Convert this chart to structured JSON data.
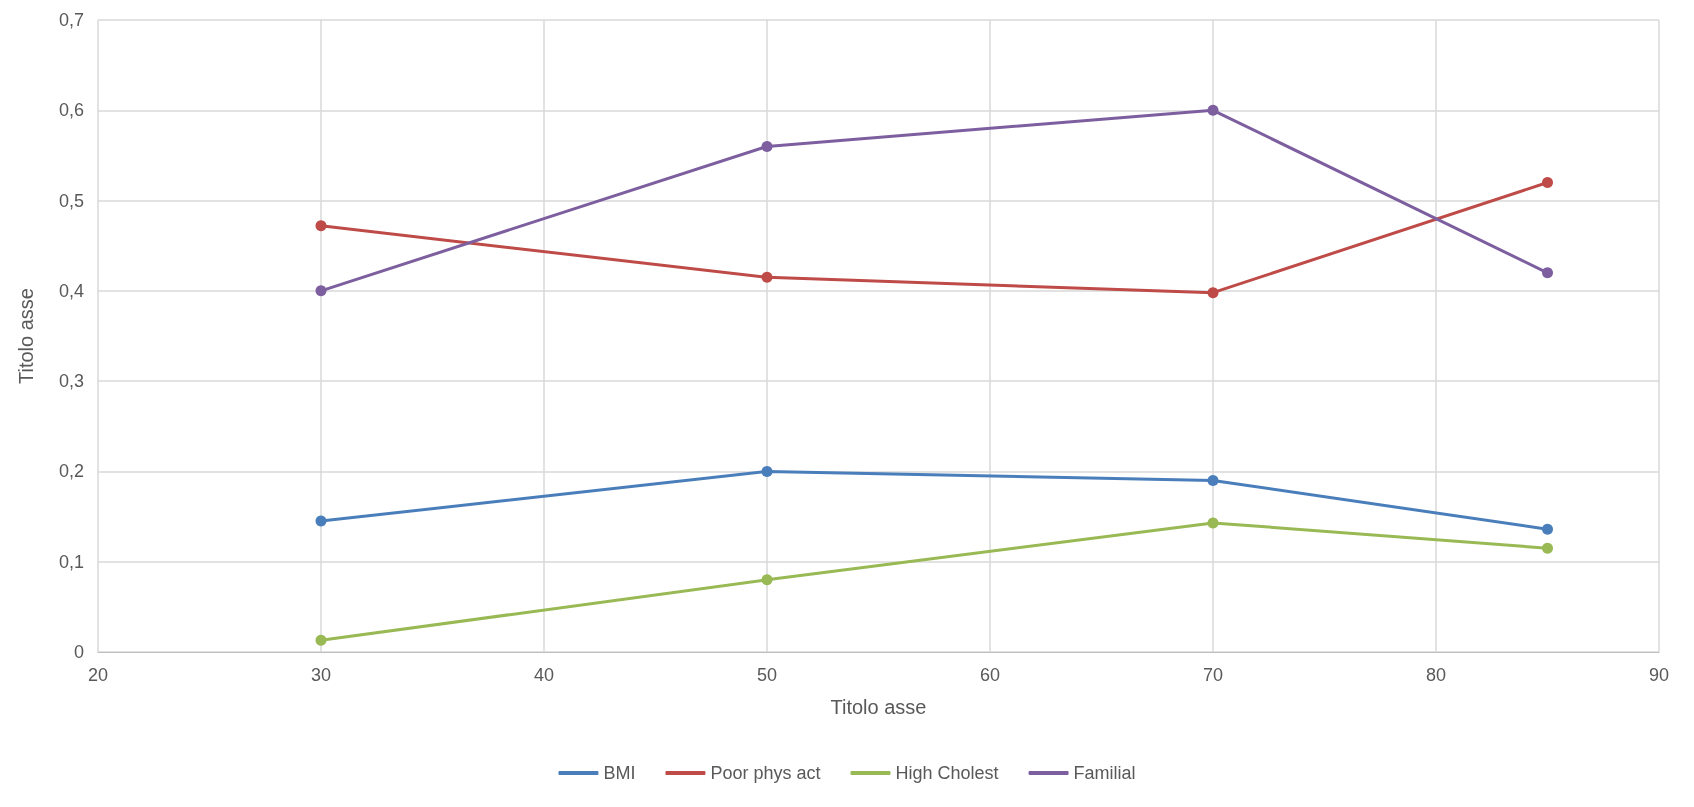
{
  "chart_data": {
    "type": "line",
    "xlabel": "Titolo asse",
    "ylabel": "Titolo asse",
    "x": [
      30,
      50,
      70,
      85
    ],
    "series": [
      {
        "name": "BMI",
        "color": "#4a7ebb",
        "values": [
          0.145,
          0.2,
          0.19,
          0.136
        ]
      },
      {
        "name": "Poor phys act",
        "color": "#be4b48",
        "values": [
          0.472,
          0.415,
          0.398,
          0.52
        ]
      },
      {
        "name": "High Cholest",
        "color": "#98b954",
        "values": [
          0.013,
          0.08,
          0.143,
          0.115
        ]
      },
      {
        "name": "Familial",
        "color": "#7d5fa0",
        "values": [
          0.4,
          0.56,
          0.6,
          0.42
        ]
      }
    ],
    "xlim": [
      20,
      90
    ],
    "xticks": [
      20,
      30,
      40,
      50,
      60,
      70,
      80,
      90
    ],
    "ylim": [
      0,
      0.7
    ],
    "yticks": [
      0,
      {
        "value": 0.1,
        "label": "0,1"
      },
      {
        "value": 0.2,
        "label": "0,2"
      },
      {
        "value": 0.3,
        "label": "0,3"
      },
      {
        "value": 0.4,
        "label": "0,4"
      },
      {
        "value": 0.5,
        "label": "0,5"
      },
      {
        "value": 0.6,
        "label": "0,6"
      },
      {
        "value": 0.7,
        "label": "0,7"
      }
    ],
    "grid": true,
    "legend": "bottom",
    "marker": "circle",
    "line_style": "solid"
  }
}
